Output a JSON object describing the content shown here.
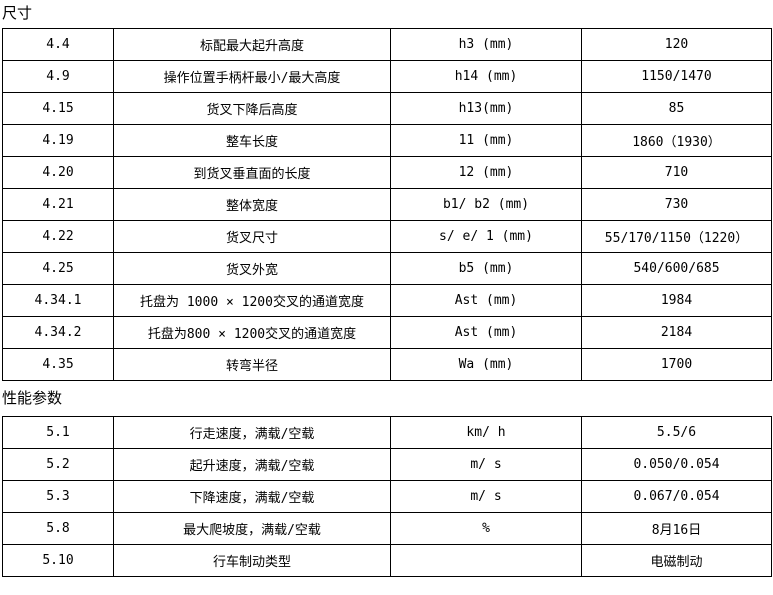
{
  "page": {
    "background": "#ffffff",
    "border_color": "#000000",
    "text_color": "#000000"
  },
  "sections": [
    {
      "title": "尺寸",
      "rows": [
        {
          "code": "4.4",
          "label": "标配最大起升高度",
          "symbol": "h3 (mm)",
          "value": "120"
        },
        {
          "code": "4.9",
          "label": "操作位置手柄杆最小/最大高度",
          "symbol": "h14 (mm)",
          "value": "1150/1470"
        },
        {
          "code": "4.15",
          "label": "货叉下降后高度",
          "symbol": "h13(mm)",
          "value": "85"
        },
        {
          "code": "4.19",
          "label": "整车长度",
          "symbol": "11 (mm)",
          "value": "1860（1930）"
        },
        {
          "code": "4.20",
          "label": "到货叉垂直面的长度",
          "symbol": "12 (mm)",
          "value": "710"
        },
        {
          "code": "4.21",
          "label": "整体宽度",
          "symbol": "b1/ b2 (mm)",
          "value": "730"
        },
        {
          "code": "4.22",
          "label": "货叉尺寸",
          "symbol": "s/ e/ 1 (mm)",
          "value": "55/170/1150（1220）"
        },
        {
          "code": "4.25",
          "label": "货叉外宽",
          "symbol": "b5 (mm)",
          "value": "540/600/685"
        },
        {
          "code": "4.34.1",
          "label": "托盘为 1000 × 1200交叉的通道宽度",
          "symbol": "Ast (mm)",
          "value": "1984"
        },
        {
          "code": "4.34.2",
          "label": "托盘为800 × 1200交叉的通道宽度",
          "symbol": "Ast (mm)",
          "value": "2184"
        },
        {
          "code": "4.35",
          "label": "转弯半径",
          "symbol": "Wa (mm)",
          "value": "1700"
        }
      ]
    },
    {
      "title": "性能参数",
      "rows": [
        {
          "code": "5.1",
          "label": "行走速度，满载/空载",
          "symbol": "km/ h",
          "value": "5.5/6"
        },
        {
          "code": "5.2",
          "label": "起升速度，满载/空载",
          "symbol": "m/ s",
          "value": "0.050/0.054"
        },
        {
          "code": "5.3",
          "label": "下降速度，满载/空载",
          "symbol": "m/ s",
          "value": "0.067/0.054"
        },
        {
          "code": "5.8",
          "label": "最大爬坡度，满载/空载",
          "symbol": "%",
          "value": "8月16日"
        },
        {
          "code": "5.10",
          "label": "行车制动类型",
          "symbol": "",
          "value": "电磁制动"
        }
      ]
    }
  ]
}
